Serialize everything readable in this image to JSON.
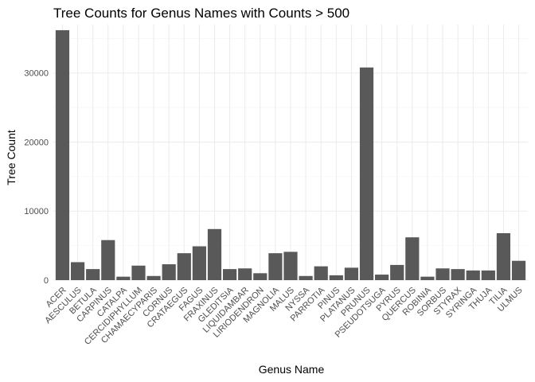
{
  "chart_data": {
    "type": "bar",
    "title": "Tree Counts for Genus Names with Counts > 500",
    "xlabel": "Genus Name",
    "ylabel": "Tree Count",
    "ylim": [
      0,
      37000
    ],
    "yticks": [
      0,
      10000,
      20000,
      30000
    ],
    "grid": true,
    "legend": "none",
    "bar_color": "#595959",
    "categories": [
      "ACER",
      "AESCULUS",
      "BETULA",
      "CARPINUS",
      "CATALPA",
      "CERCIDIPHYLLUM",
      "CHAMAECYPARIS",
      "CORNUS",
      "CRATAEGUS",
      "FAGUS",
      "FRAXINUS",
      "GLEDITSIA",
      "LIQUIDAMBAR",
      "LIRIODENDRON",
      "MAGNOLIA",
      "MALUS",
      "NYSSA",
      "PARROTIA",
      "PINUS",
      "PLATANUS",
      "PRUNUS",
      "PSEUDOTSUGA",
      "PYRUS",
      "QUERCUS",
      "ROBINIA",
      "SORBUS",
      "STYRAX",
      "SYRINGA",
      "THUJA",
      "TILIA",
      "ULMUS"
    ],
    "values": [
      36200,
      2600,
      1600,
      5800,
      500,
      2100,
      600,
      2300,
      3900,
      4900,
      7400,
      1600,
      1700,
      1000,
      3900,
      4100,
      600,
      2000,
      700,
      1800,
      30800,
      800,
      2200,
      6200,
      500,
      1700,
      1600,
      1400,
      1400,
      6800,
      2800
    ]
  }
}
